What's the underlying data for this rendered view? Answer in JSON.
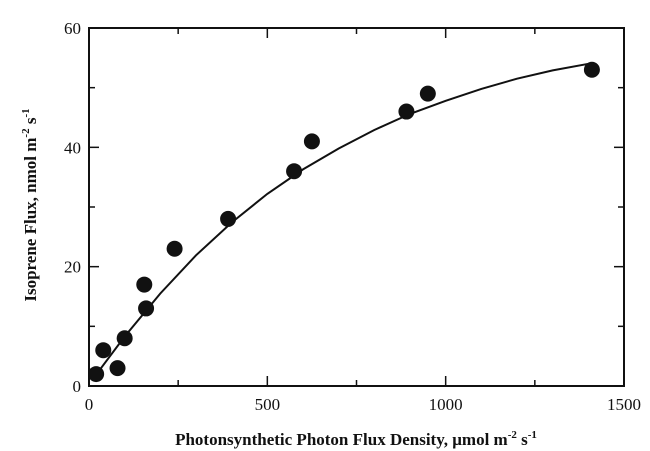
{
  "chart_data": {
    "type": "scatter",
    "xlabel": "Photonsynthetic Photon Flux Density, μmol m",
    "xlabel_units": {
      "exp1": "-2",
      "mid": " s",
      "exp2": "-1"
    },
    "ylabel": "Isoprene Flux, nmol m",
    "ylabel_units": {
      "exp1": "-2",
      "mid": " s",
      "exp2": "-1"
    },
    "xlim": [
      0,
      1500
    ],
    "ylim": [
      0,
      60
    ],
    "xticks": [
      0,
      500,
      1000,
      1500
    ],
    "yticks": [
      0,
      20,
      40,
      60
    ],
    "x_minor_step": 250,
    "y_minor_step": 10,
    "grid": false,
    "series": [
      {
        "points": [
          {
            "x": 20,
            "y": 2
          },
          {
            "x": 40,
            "y": 6
          },
          {
            "x": 80,
            "y": 3
          },
          {
            "x": 100,
            "y": 8
          },
          {
            "x": 155,
            "y": 17
          },
          {
            "x": 160,
            "y": 13
          },
          {
            "x": 240,
            "y": 23
          },
          {
            "x": 390,
            "y": 28
          },
          {
            "x": 575,
            "y": 36
          },
          {
            "x": 625,
            "y": 41
          },
          {
            "x": 890,
            "y": 46
          },
          {
            "x": 950,
            "y": 49
          },
          {
            "x": 1410,
            "y": 53
          }
        ]
      }
    ],
    "fit_curve": {
      "type": "saturating_exponential",
      "points": [
        {
          "x": 20,
          "y": 1.9
        },
        {
          "x": 100,
          "y": 8.3
        },
        {
          "x": 200,
          "y": 15.5
        },
        {
          "x": 300,
          "y": 21.9
        },
        {
          "x": 400,
          "y": 27.4
        },
        {
          "x": 500,
          "y": 32.2
        },
        {
          "x": 600,
          "y": 36.3
        },
        {
          "x": 700,
          "y": 39.8
        },
        {
          "x": 800,
          "y": 42.9
        },
        {
          "x": 900,
          "y": 45.6
        },
        {
          "x": 1000,
          "y": 47.8
        },
        {
          "x": 1100,
          "y": 49.8
        },
        {
          "x": 1200,
          "y": 51.5
        },
        {
          "x": 1300,
          "y": 52.9
        },
        {
          "x": 1410,
          "y": 54.1
        }
      ]
    }
  }
}
